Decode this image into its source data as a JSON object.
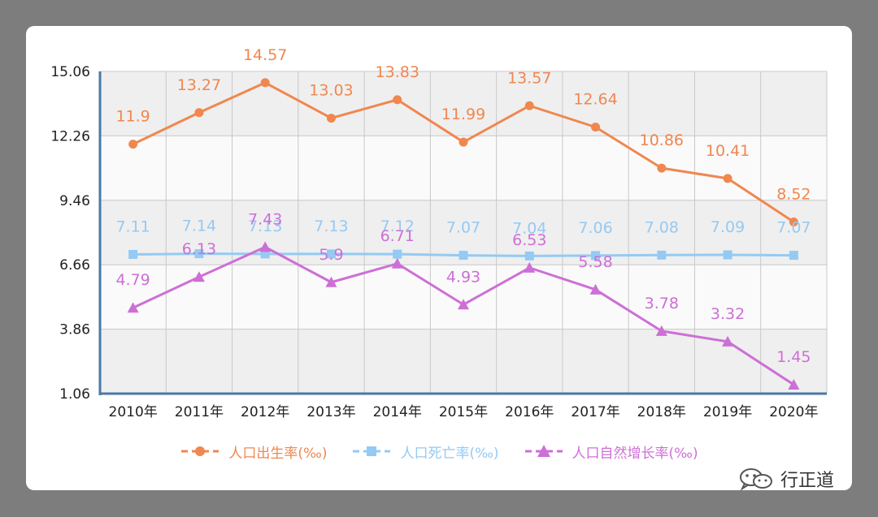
{
  "chart_data": {
    "type": "line",
    "categories": [
      "2010年",
      "2011年",
      "2012年",
      "2013年",
      "2014年",
      "2015年",
      "2016年",
      "2017年",
      "2018年",
      "2019年",
      "2020年"
    ],
    "series": [
      {
        "name": "人口出生率(‰)",
        "color": "#f0874f",
        "marker": "circle",
        "values": [
          11.9,
          13.27,
          14.57,
          13.03,
          13.83,
          11.99,
          13.57,
          12.64,
          10.86,
          10.41,
          8.52
        ],
        "labels": [
          "11.9",
          "13.27",
          "14.57",
          "13.03",
          "13.83",
          "11.99",
          "13.57",
          "12.64",
          "10.86",
          "10.41",
          "8.52"
        ]
      },
      {
        "name": "人口死亡率(‰)",
        "color": "#94caf3",
        "marker": "square",
        "values": [
          7.11,
          7.14,
          7.13,
          7.13,
          7.12,
          7.07,
          7.04,
          7.06,
          7.08,
          7.09,
          7.07
        ],
        "labels": [
          "7.11",
          "7.14",
          "7.13",
          "7.13",
          "7.12",
          "7.07",
          "7.04",
          "7.06",
          "7.08",
          "7.09",
          "7.07"
        ]
      },
      {
        "name": "人口自然增长率(‰)",
        "color": "#cd6fd6",
        "marker": "triangle",
        "values": [
          4.79,
          6.13,
          7.43,
          5.9,
          6.71,
          4.93,
          6.53,
          5.58,
          3.78,
          3.32,
          1.45
        ],
        "labels": [
          "4.79",
          "6.13",
          "7.43",
          "5.9",
          "6.71",
          "4.93",
          "6.53",
          "5.58",
          "3.78",
          "3.32",
          "1.45"
        ]
      }
    ],
    "yticks": [
      "1.06",
      "3.86",
      "6.66",
      "9.46",
      "12.26",
      "15.06"
    ],
    "ylim": [
      1.06,
      15.06
    ],
    "grid": true,
    "legend_position": "bottom"
  },
  "watermark": {
    "text": "行正道",
    "icon": "wechat-icon"
  }
}
